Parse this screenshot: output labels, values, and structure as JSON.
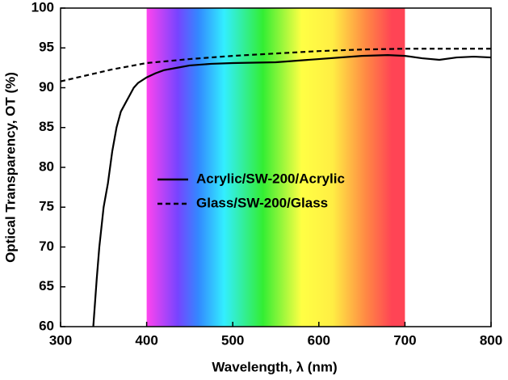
{
  "chart_data": {
    "type": "line",
    "xlabel": "Wavelength, λ (nm)",
    "ylabel": "Optical Transparency, OT (%)",
    "xlim": [
      300,
      800
    ],
    "xticks": [
      300,
      400,
      500,
      600,
      700,
      800
    ],
    "ylim": [
      60,
      100
    ],
    "yticks": [
      60,
      65,
      70,
      75,
      80,
      85,
      90,
      95,
      100
    ],
    "spectrum_band": [
      400,
      700
    ],
    "legend": "center",
    "series": [
      {
        "name": "Acrylic/SW-200/Acrylic",
        "color": "#000000",
        "dash": "solid",
        "x": [
          338,
          342,
          345,
          350,
          355,
          360,
          365,
          370,
          375,
          380,
          385,
          390,
          400,
          410,
          420,
          435,
          450,
          475,
          500,
          550,
          600,
          650,
          680,
          700,
          720,
          740,
          760,
          780,
          800
        ],
        "values": [
          60,
          66,
          70,
          75,
          78,
          82,
          85,
          87,
          88,
          89,
          90,
          90.6,
          91.3,
          91.8,
          92.2,
          92.5,
          92.8,
          93,
          93.1,
          93.2,
          93.6,
          94,
          94.1,
          94,
          93.7,
          93.5,
          93.8,
          93.9,
          93.8
        ]
      },
      {
        "name": "Glass/SW-200/Glass",
        "color": "#000000",
        "dash": "dashed",
        "x": [
          300,
          320,
          340,
          360,
          380,
          400,
          450,
          500,
          550,
          600,
          650,
          700,
          750,
          800
        ],
        "values": [
          90.8,
          91.3,
          91.8,
          92.3,
          92.7,
          93.1,
          93.6,
          94,
          94.3,
          94.6,
          94.8,
          94.9,
          94.9,
          94.9
        ]
      }
    ]
  }
}
